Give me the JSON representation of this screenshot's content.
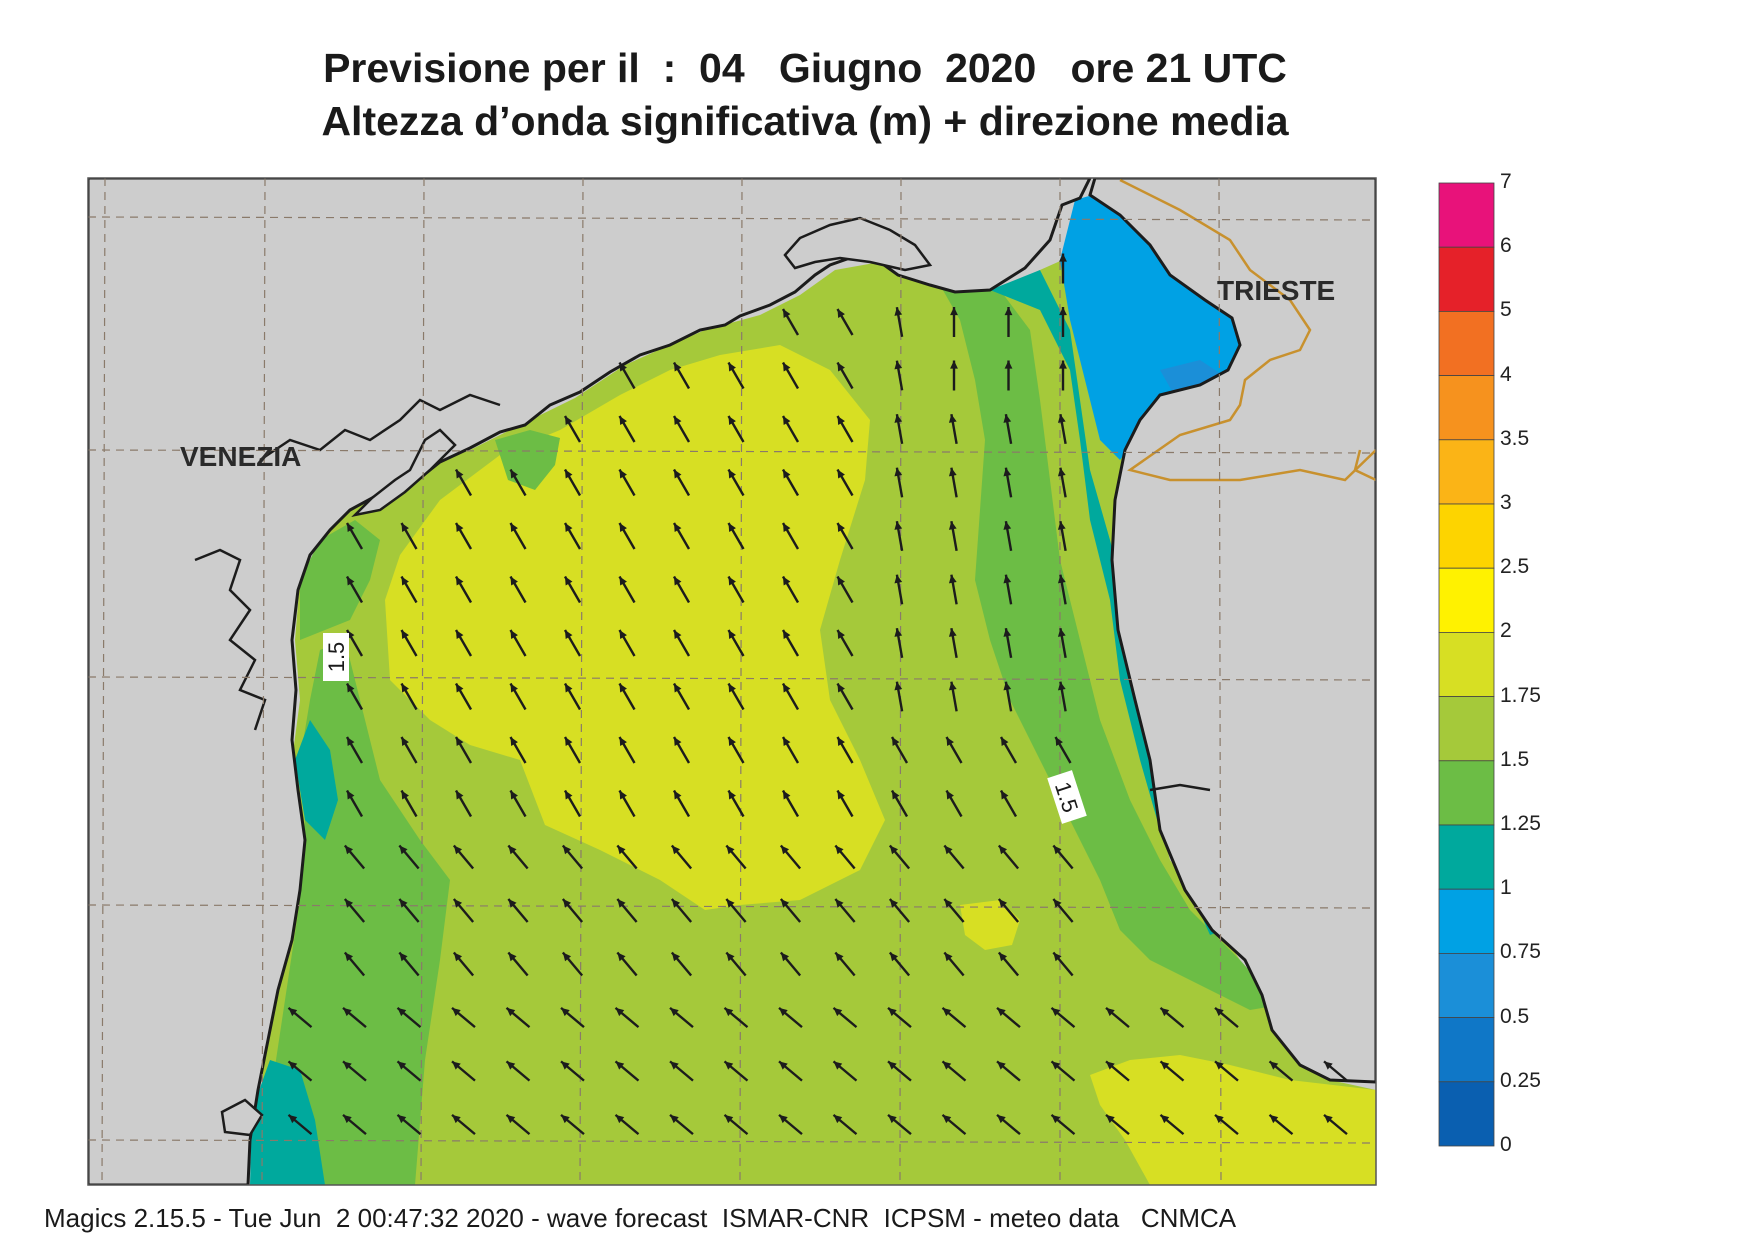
{
  "header": {
    "title_line1": "Previsione per il  :  04   Giugno  2020   ore 21 UTC",
    "title_line2": "Altezza d’onda significativa (m) + direzione media"
  },
  "map": {
    "place_labels": [
      "VENEZIA",
      "TRIESTE"
    ],
    "contour_labels": [
      "1.5",
      "1.5"
    ],
    "colors": {
      "land": "#cdcdcd",
      "coastline": "#1c1c1c",
      "border": "#c8912e",
      "grid": "#8a7a6a",
      "arrow": "#1c1c1c"
    }
  },
  "legend": {
    "labels": [
      "7",
      "6",
      "5",
      "4",
      "3.5",
      "3",
      "2.5",
      "2",
      "1.75",
      "1.5",
      "1.25",
      "1",
      "0.75",
      "0.5",
      "0.25",
      "0"
    ],
    "colors": [
      "#e8127a",
      "#e52129",
      "#f27022",
      "#f6921e",
      "#fbb416",
      "#fdd400",
      "#fff200",
      "#d7df23",
      "#a5c93a",
      "#6cbd45",
      "#00a99d",
      "#00a1e4",
      "#1b8fd8",
      "#0f77c7",
      "#0a5fb0"
    ]
  },
  "footer": {
    "text": "Magics 2.15.5 - Tue Jun  2 00:47:32 2020 - wave forecast  ISMAR-CNR  ICPSM - meteo data   CNMCA"
  }
}
